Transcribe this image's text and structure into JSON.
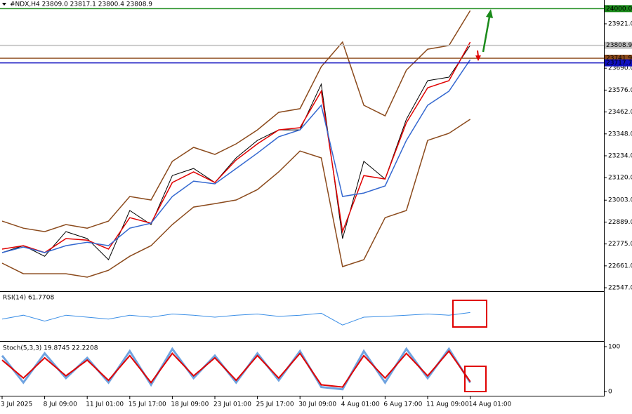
{
  "chart_data": [
    {
      "type": "line",
      "title": "#NDX,H4  23809.0 23817.1 23800.4 23808.9",
      "categories": [
        "3 Jul 2025",
        null,
        "8 Jul 09:00",
        null,
        "11 Jul 01:00",
        null,
        "15 Jul 17:00",
        null,
        "18 Jul 09:00",
        null,
        "23 Jul 01:00",
        null,
        "25 Jul 17:00",
        null,
        "30 Jul 09:00",
        null,
        "4 Aug 01:00",
        null,
        "6 Aug 17:00",
        null,
        "11 Aug 09:00",
        null,
        "14 Aug 01:00"
      ],
      "series": [
        {
          "color": "#000000",
          "values": [
            22730,
            22766,
            22711,
            22839,
            22803,
            22693,
            22949,
            22876,
            23131,
            23168,
            23095,
            23223,
            23314,
            23369,
            23369,
            23607,
            22803,
            23205,
            23113,
            23424,
            23625,
            23643,
            23808.9
          ]
        },
        {
          "color": "#8b4a1c",
          "values": [
            22894,
            22857,
            22839,
            22876,
            22857,
            22894,
            23022,
            23004,
            23205,
            23278,
            23241,
            23296,
            23369,
            23460,
            23479,
            23698,
            23826,
            23497,
            23442,
            23680,
            23789,
            23808,
            23990
          ]
        },
        {
          "color": "#8b4a1c",
          "values": [
            22675,
            22620,
            22620,
            22620,
            22602,
            22638,
            22711,
            22766,
            22876,
            22967,
            22985,
            23004,
            23058,
            23150,
            23259,
            23223,
            22657,
            22693,
            22912,
            22949,
            23314,
            23351,
            23424
          ]
        },
        {
          "color": "#e00000",
          "values": [
            22748,
            22766,
            22730,
            22803,
            22795,
            22748,
            22912,
            22883,
            23095,
            23150,
            23095,
            23212,
            23296,
            23369,
            23380,
            23570,
            22839,
            23131,
            23113,
            23406,
            23588,
            23625,
            23826
          ]
        },
        {
          "color": "#3468d0",
          "values": [
            22730,
            22759,
            22730,
            22766,
            22784,
            22766,
            22857,
            22883,
            23022,
            23102,
            23088,
            23168,
            23248,
            23333,
            23369,
            23497,
            23022,
            23040,
            23077,
            23314,
            23497,
            23570,
            23734
          ]
        }
      ],
      "ylim": [
        22529,
        24045
      ],
      "yticks": [
        {
          "value": 23921,
          "label": "23921.0"
        },
        {
          "value": 23690,
          "label": "23690.0"
        },
        {
          "value": 23576,
          "label": "23576.0"
        },
        {
          "value": 23462,
          "label": "23462.0"
        },
        {
          "value": 23348,
          "label": "23348.0"
        },
        {
          "value": 23234,
          "label": "23234.0"
        },
        {
          "value": 23120,
          "label": "23120.0"
        },
        {
          "value": 23003,
          "label": "23003.0"
        },
        {
          "value": 22889,
          "label": "22889.0"
        },
        {
          "value": 22775,
          "label": "22775.0"
        },
        {
          "value": 22661,
          "label": "22661.0"
        },
        {
          "value": 22547,
          "label": "22547.0"
        }
      ],
      "hlines": [
        {
          "value": 24000,
          "label": "24000.0",
          "color": "#1a8a1a"
        },
        {
          "value": 23808.9,
          "label": "23808.9",
          "color": "#c0c0c0"
        },
        {
          "value": 23741.9,
          "label": "23741.9",
          "color": "#8b4a1c"
        },
        {
          "value": 23717.7,
          "label": "23717.7",
          "color": "#1010c0"
        }
      ]
    },
    {
      "type": "line",
      "title": "RSI(14) 61.7708",
      "ylim": [
        0,
        100
      ],
      "series": [
        {
          "color": "#3a8ee6",
          "values": [
            45,
            55,
            40,
            55,
            50,
            45,
            55,
            50,
            58,
            55,
            50,
            55,
            58,
            52,
            55,
            60,
            30,
            50,
            52,
            55,
            58,
            55,
            61.7708
          ]
        }
      ]
    },
    {
      "type": "line",
      "title": "Stoch(5,3,3) 19.8745 22.2208",
      "ylim": [
        0,
        100
      ],
      "yticks": [
        0,
        100
      ],
      "series": [
        {
          "color": "#6fa3e0",
          "values": [
            80,
            20,
            85,
            30,
            75,
            20,
            90,
            15,
            95,
            30,
            80,
            20,
            85,
            25,
            90,
            10,
            5,
            90,
            20,
            95,
            30,
            95,
            19.8745
          ]
        },
        {
          "color": "#e00000",
          "values": [
            70,
            30,
            75,
            35,
            70,
            25,
            80,
            20,
            85,
            35,
            75,
            25,
            80,
            30,
            85,
            15,
            10,
            80,
            30,
            85,
            35,
            90,
            22.2208
          ]
        }
      ]
    }
  ]
}
